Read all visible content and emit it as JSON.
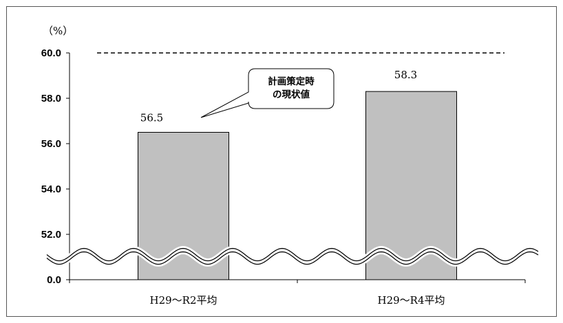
{
  "chart_data": {
    "type": "bar",
    "title": "",
    "ylabel": "",
    "unit_label": "（%）",
    "categories": [
      "H29～R2平均",
      "H29～R4平均"
    ],
    "values": [
      56.5,
      58.3
    ],
    "value_labels": [
      "56.5",
      "58.3"
    ],
    "y_ticks": [
      "0.0",
      "52.0",
      "54.0",
      "56.0",
      "58.0",
      "60.0"
    ],
    "ylim": [
      50,
      60
    ],
    "axis_break": true,
    "target_line": 60.0,
    "callout": "計画策定時\nの現状値",
    "callout_target_index": 0,
    "bar_color": "#c0c0c0",
    "grid": false,
    "legend": "none"
  }
}
